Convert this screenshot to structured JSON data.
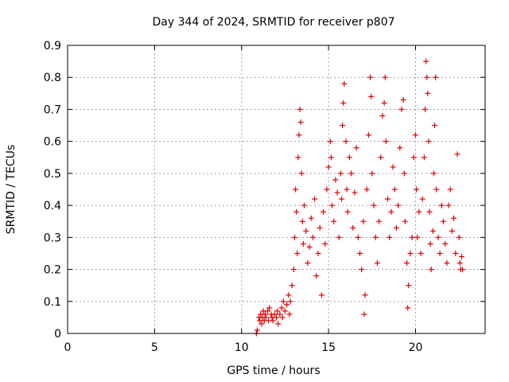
{
  "chart_data": {
    "type": "scatter",
    "title": "Day 344 of 2024, SRMTID for receiver p807",
    "xlabel": "GPS time / hours",
    "ylabel": "SRMTID / TECUs",
    "xlim": [
      0,
      24
    ],
    "ylim": [
      0,
      0.9
    ],
    "xticks": [
      0,
      5,
      10,
      15,
      20
    ],
    "yticks": [
      0,
      0.1,
      0.2,
      0.3,
      0.4,
      0.5,
      0.6,
      0.7,
      0.8,
      0.9
    ],
    "ytick_labels": [
      "0",
      "0.1",
      "0.2",
      "0.3",
      "0.4",
      "0.5",
      "0.6",
      "0.7",
      "0.8",
      "0.9"
    ],
    "xtick_labels": [
      "0",
      "5",
      "10",
      "15",
      "20"
    ],
    "grid": true,
    "marker": "+",
    "color": "#e00000",
    "series": [
      {
        "name": "SRMTID",
        "points": [
          [
            10.85,
            0.0
          ],
          [
            10.9,
            0.01
          ],
          [
            11.0,
            0.05
          ],
          [
            11.05,
            0.04
          ],
          [
            11.1,
            0.06
          ],
          [
            11.15,
            0.03
          ],
          [
            11.2,
            0.05
          ],
          [
            11.25,
            0.07
          ],
          [
            11.3,
            0.04
          ],
          [
            11.35,
            0.06
          ],
          [
            11.4,
            0.05
          ],
          [
            11.5,
            0.07
          ],
          [
            11.55,
            0.04
          ],
          [
            11.6,
            0.08
          ],
          [
            11.7,
            0.06
          ],
          [
            11.75,
            0.05
          ],
          [
            11.8,
            0.04
          ],
          [
            11.9,
            0.06
          ],
          [
            12.0,
            0.05
          ],
          [
            12.05,
            0.07
          ],
          [
            12.1,
            0.03
          ],
          [
            12.2,
            0.06
          ],
          [
            12.3,
            0.08
          ],
          [
            12.35,
            0.05
          ],
          [
            12.4,
            0.1
          ],
          [
            12.5,
            0.07
          ],
          [
            12.6,
            0.09
          ],
          [
            12.7,
            0.12
          ],
          [
            12.75,
            0.06
          ],
          [
            12.8,
            0.1
          ],
          [
            12.9,
            0.15
          ],
          [
            13.0,
            0.2
          ],
          [
            13.05,
            0.3
          ],
          [
            13.1,
            0.45
          ],
          [
            13.15,
            0.38
          ],
          [
            13.2,
            0.25
          ],
          [
            13.25,
            0.55
          ],
          [
            13.3,
            0.62
          ],
          [
            13.35,
            0.7
          ],
          [
            13.4,
            0.66
          ],
          [
            13.45,
            0.5
          ],
          [
            13.5,
            0.35
          ],
          [
            13.55,
            0.28
          ],
          [
            13.6,
            0.4
          ],
          [
            13.7,
            0.32
          ],
          [
            13.8,
            0.22
          ],
          [
            13.9,
            0.27
          ],
          [
            14.0,
            0.36
          ],
          [
            14.1,
            0.3
          ],
          [
            14.2,
            0.42
          ],
          [
            14.3,
            0.18
          ],
          [
            14.4,
            0.25
          ],
          [
            14.5,
            0.33
          ],
          [
            14.6,
            0.12
          ],
          [
            14.7,
            0.38
          ],
          [
            14.8,
            0.28
          ],
          [
            14.9,
            0.45
          ],
          [
            15.0,
            0.52
          ],
          [
            15.1,
            0.6
          ],
          [
            15.15,
            0.55
          ],
          [
            15.2,
            0.4
          ],
          [
            15.3,
            0.35
          ],
          [
            15.4,
            0.48
          ],
          [
            15.5,
            0.44
          ],
          [
            15.6,
            0.3
          ],
          [
            15.7,
            0.5
          ],
          [
            15.75,
            0.42
          ],
          [
            15.8,
            0.65
          ],
          [
            15.85,
            0.72
          ],
          [
            15.9,
            0.78
          ],
          [
            16.0,
            0.6
          ],
          [
            16.05,
            0.45
          ],
          [
            16.1,
            0.38
          ],
          [
            16.2,
            0.55
          ],
          [
            16.3,
            0.5
          ],
          [
            16.4,
            0.33
          ],
          [
            16.5,
            0.44
          ],
          [
            16.6,
            0.58
          ],
          [
            16.7,
            0.3
          ],
          [
            16.8,
            0.25
          ],
          [
            16.9,
            0.2
          ],
          [
            17.0,
            0.35
          ],
          [
            17.05,
            0.06
          ],
          [
            17.1,
            0.12
          ],
          [
            17.2,
            0.45
          ],
          [
            17.3,
            0.62
          ],
          [
            17.4,
            0.8
          ],
          [
            17.45,
            0.74
          ],
          [
            17.5,
            0.5
          ],
          [
            17.6,
            0.4
          ],
          [
            17.7,
            0.3
          ],
          [
            17.8,
            0.22
          ],
          [
            17.9,
            0.35
          ],
          [
            18.0,
            0.55
          ],
          [
            18.1,
            0.68
          ],
          [
            18.2,
            0.72
          ],
          [
            18.25,
            0.8
          ],
          [
            18.3,
            0.6
          ],
          [
            18.4,
            0.42
          ],
          [
            18.5,
            0.3
          ],
          [
            18.6,
            0.38
          ],
          [
            18.7,
            0.52
          ],
          [
            18.8,
            0.45
          ],
          [
            18.9,
            0.33
          ],
          [
            19.0,
            0.4
          ],
          [
            19.1,
            0.58
          ],
          [
            19.2,
            0.7
          ],
          [
            19.3,
            0.73
          ],
          [
            19.35,
            0.5
          ],
          [
            19.4,
            0.35
          ],
          [
            19.5,
            0.22
          ],
          [
            19.55,
            0.08
          ],
          [
            19.6,
            0.15
          ],
          [
            19.7,
            0.25
          ],
          [
            19.8,
            0.3
          ],
          [
            19.9,
            0.55
          ],
          [
            20.0,
            0.62
          ],
          [
            20.05,
            0.45
          ],
          [
            20.1,
            0.3
          ],
          [
            20.2,
            0.38
          ],
          [
            20.3,
            0.25
          ],
          [
            20.4,
            0.42
          ],
          [
            20.5,
            0.55
          ],
          [
            20.55,
            0.7
          ],
          [
            20.6,
            0.85
          ],
          [
            20.65,
            0.8
          ],
          [
            20.7,
            0.75
          ],
          [
            20.75,
            0.6
          ],
          [
            20.8,
            0.38
          ],
          [
            20.85,
            0.28
          ],
          [
            20.9,
            0.2
          ],
          [
            21.0,
            0.32
          ],
          [
            21.05,
            0.5
          ],
          [
            21.1,
            0.65
          ],
          [
            21.15,
            0.8
          ],
          [
            21.2,
            0.45
          ],
          [
            21.3,
            0.3
          ],
          [
            21.4,
            0.25
          ],
          [
            21.5,
            0.4
          ],
          [
            21.6,
            0.35
          ],
          [
            21.7,
            0.28
          ],
          [
            21.8,
            0.22
          ],
          [
            21.9,
            0.4
          ],
          [
            22.0,
            0.45
          ],
          [
            22.1,
            0.32
          ],
          [
            22.2,
            0.36
          ],
          [
            22.3,
            0.25
          ],
          [
            22.4,
            0.56
          ],
          [
            22.5,
            0.3
          ],
          [
            22.55,
            0.22
          ],
          [
            22.6,
            0.2
          ],
          [
            22.65,
            0.24
          ],
          [
            22.7,
            0.2
          ]
        ]
      }
    ]
  }
}
